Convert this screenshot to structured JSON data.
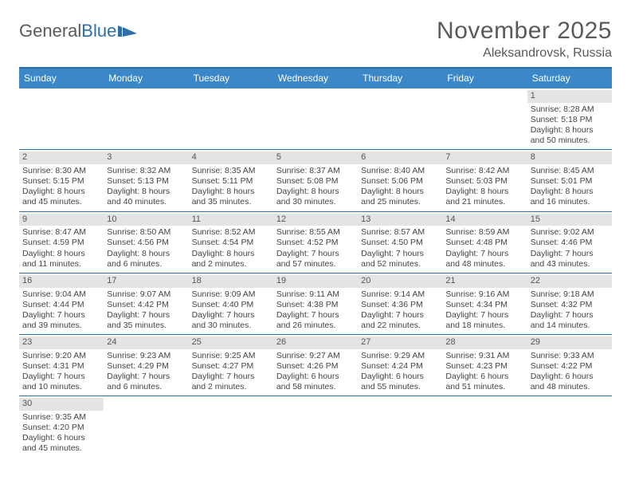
{
  "brand": {
    "part1": "General",
    "part2": "Blue"
  },
  "title": "November 2025",
  "location": "Aleksandrovsk, Russia",
  "colors": {
    "header_bg": "#3b87c8",
    "rule": "#2f6fa8",
    "daynum_bg": "#e4e4e4",
    "text": "#444444",
    "title_text": "#5a5a5a"
  },
  "weekdays": [
    "Sunday",
    "Monday",
    "Tuesday",
    "Wednesday",
    "Thursday",
    "Friday",
    "Saturday"
  ],
  "first_weekday_index": 6,
  "days": [
    {
      "n": 1,
      "sunrise": "8:28 AM",
      "sunset": "5:18 PM",
      "dl_h": 8,
      "dl_m": 50
    },
    {
      "n": 2,
      "sunrise": "8:30 AM",
      "sunset": "5:15 PM",
      "dl_h": 8,
      "dl_m": 45
    },
    {
      "n": 3,
      "sunrise": "8:32 AM",
      "sunset": "5:13 PM",
      "dl_h": 8,
      "dl_m": 40
    },
    {
      "n": 4,
      "sunrise": "8:35 AM",
      "sunset": "5:11 PM",
      "dl_h": 8,
      "dl_m": 35
    },
    {
      "n": 5,
      "sunrise": "8:37 AM",
      "sunset": "5:08 PM",
      "dl_h": 8,
      "dl_m": 30
    },
    {
      "n": 6,
      "sunrise": "8:40 AM",
      "sunset": "5:06 PM",
      "dl_h": 8,
      "dl_m": 25
    },
    {
      "n": 7,
      "sunrise": "8:42 AM",
      "sunset": "5:03 PM",
      "dl_h": 8,
      "dl_m": 21
    },
    {
      "n": 8,
      "sunrise": "8:45 AM",
      "sunset": "5:01 PM",
      "dl_h": 8,
      "dl_m": 16
    },
    {
      "n": 9,
      "sunrise": "8:47 AM",
      "sunset": "4:59 PM",
      "dl_h": 8,
      "dl_m": 11
    },
    {
      "n": 10,
      "sunrise": "8:50 AM",
      "sunset": "4:56 PM",
      "dl_h": 8,
      "dl_m": 6
    },
    {
      "n": 11,
      "sunrise": "8:52 AM",
      "sunset": "4:54 PM",
      "dl_h": 8,
      "dl_m": 2
    },
    {
      "n": 12,
      "sunrise": "8:55 AM",
      "sunset": "4:52 PM",
      "dl_h": 7,
      "dl_m": 57
    },
    {
      "n": 13,
      "sunrise": "8:57 AM",
      "sunset": "4:50 PM",
      "dl_h": 7,
      "dl_m": 52
    },
    {
      "n": 14,
      "sunrise": "8:59 AM",
      "sunset": "4:48 PM",
      "dl_h": 7,
      "dl_m": 48
    },
    {
      "n": 15,
      "sunrise": "9:02 AM",
      "sunset": "4:46 PM",
      "dl_h": 7,
      "dl_m": 43
    },
    {
      "n": 16,
      "sunrise": "9:04 AM",
      "sunset": "4:44 PM",
      "dl_h": 7,
      "dl_m": 39
    },
    {
      "n": 17,
      "sunrise": "9:07 AM",
      "sunset": "4:42 PM",
      "dl_h": 7,
      "dl_m": 35
    },
    {
      "n": 18,
      "sunrise": "9:09 AM",
      "sunset": "4:40 PM",
      "dl_h": 7,
      "dl_m": 30
    },
    {
      "n": 19,
      "sunrise": "9:11 AM",
      "sunset": "4:38 PM",
      "dl_h": 7,
      "dl_m": 26
    },
    {
      "n": 20,
      "sunrise": "9:14 AM",
      "sunset": "4:36 PM",
      "dl_h": 7,
      "dl_m": 22
    },
    {
      "n": 21,
      "sunrise": "9:16 AM",
      "sunset": "4:34 PM",
      "dl_h": 7,
      "dl_m": 18
    },
    {
      "n": 22,
      "sunrise": "9:18 AM",
      "sunset": "4:32 PM",
      "dl_h": 7,
      "dl_m": 14
    },
    {
      "n": 23,
      "sunrise": "9:20 AM",
      "sunset": "4:31 PM",
      "dl_h": 7,
      "dl_m": 10
    },
    {
      "n": 24,
      "sunrise": "9:23 AM",
      "sunset": "4:29 PM",
      "dl_h": 7,
      "dl_m": 6
    },
    {
      "n": 25,
      "sunrise": "9:25 AM",
      "sunset": "4:27 PM",
      "dl_h": 7,
      "dl_m": 2
    },
    {
      "n": 26,
      "sunrise": "9:27 AM",
      "sunset": "4:26 PM",
      "dl_h": 6,
      "dl_m": 58
    },
    {
      "n": 27,
      "sunrise": "9:29 AM",
      "sunset": "4:24 PM",
      "dl_h": 6,
      "dl_m": 55
    },
    {
      "n": 28,
      "sunrise": "9:31 AM",
      "sunset": "4:23 PM",
      "dl_h": 6,
      "dl_m": 51
    },
    {
      "n": 29,
      "sunrise": "9:33 AM",
      "sunset": "4:22 PM",
      "dl_h": 6,
      "dl_m": 48
    },
    {
      "n": 30,
      "sunrise": "9:35 AM",
      "sunset": "4:20 PM",
      "dl_h": 6,
      "dl_m": 45
    }
  ],
  "labels": {
    "sunrise_prefix": "Sunrise: ",
    "sunset_prefix": "Sunset: ",
    "daylight_prefix": "Daylight: ",
    "hours_word": " hours",
    "and_word": "and ",
    "minutes_word": " minutes."
  }
}
